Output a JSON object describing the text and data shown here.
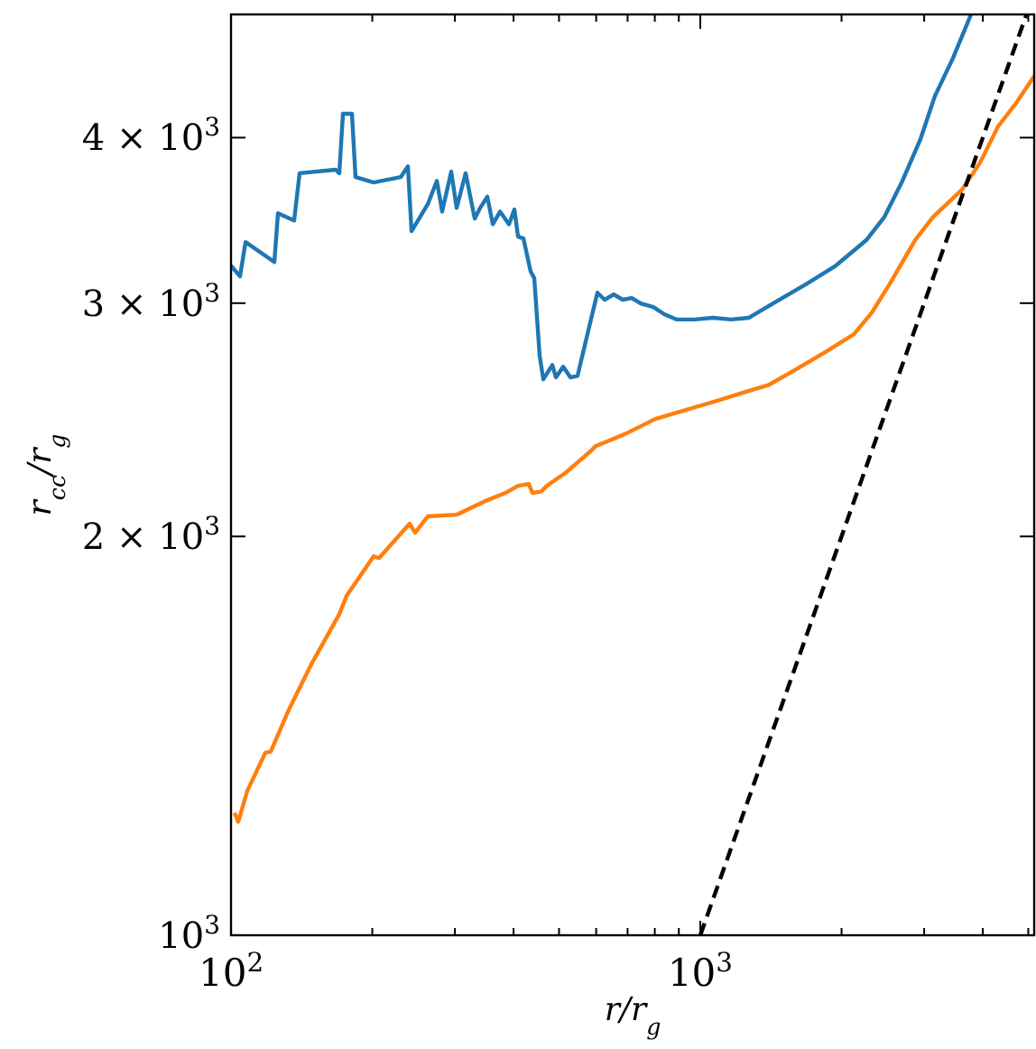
{
  "chart_data": {
    "type": "line",
    "xlabel": "r/r$_{g}$",
    "ylabel": "r$_{cc}$/r$_{g}$",
    "log": "xy",
    "grid": false,
    "xlim": [
      100,
      5147
    ],
    "ylim": [
      1000,
      4955
    ],
    "xticks": [
      {
        "value": 100,
        "label": "10$^{2}$"
      },
      {
        "value": 200,
        "label": null
      },
      {
        "value": 300,
        "label": null
      },
      {
        "value": 400,
        "label": null
      },
      {
        "value": 500,
        "label": null
      },
      {
        "value": 600,
        "label": null
      },
      {
        "value": 700,
        "label": null
      },
      {
        "value": 800,
        "label": null
      },
      {
        "value": 900,
        "label": null
      },
      {
        "value": 1000,
        "label": "10$^{3}$"
      },
      {
        "value": 2000,
        "label": null
      },
      {
        "value": 3000,
        "label": null
      },
      {
        "value": 4000,
        "label": null
      },
      {
        "value": 5000,
        "label": null
      }
    ],
    "yticks": [
      {
        "value": 1000,
        "label": "10$^{3}$"
      },
      {
        "value": 2000,
        "label": "2 × 10$^{3}$"
      },
      {
        "value": 3000,
        "label": "3 × 10$^{3}$"
      },
      {
        "value": 4000,
        "label": "4 × 10$^{3}$"
      }
    ],
    "series": [
      {
        "color": "#1f77b4",
        "line_style": "solid",
        "x": [
          100,
          104.5,
          107.4,
          123.7,
          125.9,
          136.3,
          140,
          167.1,
          170.1,
          173.2,
          181,
          184.2,
          201.3,
          229.9,
          238.2,
          242.5,
          262.6,
          274.5,
          281.8,
          294.6,
          302.6,
          316.2,
          330.6,
          339.5,
          351.7,
          361.3,
          374.3,
          391.1,
          401.7,
          408.9,
          419.9,
          435,
          442.8,
          454.7,
          462.9,
          483.8,
          492.4,
          510.3,
          528.7,
          547.6,
          577.4,
          603.6,
          625.5,
          653.8,
          683.4,
          714.3,
          746.6,
          794.3,
          837.5,
          891.3,
          973.8,
          1064,
          1163,
          1270,
          1451,
          1686,
          1944,
          2258,
          2468,
          2696,
          2946,
          3162,
          3455,
          3776
        ],
        "values": [
          3202,
          3143,
          3336,
          3222,
          3507,
          3463,
          3760,
          3783,
          3760,
          4170,
          4170,
          3735,
          3700,
          3735,
          3805,
          3400,
          3563,
          3710,
          3518,
          3770,
          3540,
          3760,
          3475,
          3540,
          3610,
          3441,
          3518,
          3441,
          3530,
          3368,
          3357,
          3170,
          3133,
          2737,
          2628,
          2694,
          2637,
          2686,
          2637,
          2644,
          2861,
          3055,
          3018,
          3046,
          3018,
          3027,
          2999,
          2980,
          2943,
          2916,
          2916,
          2925,
          2916,
          2925,
          3008,
          3103,
          3202,
          3347,
          3485,
          3710,
          3990,
          4300,
          4593,
          4955
        ]
      },
      {
        "color": "#ff7f0e",
        "line_style": "solid",
        "x": [
          101.8,
          103.6,
          108.3,
          118.3,
          121.5,
          132.8,
          148.9,
          170.1,
          176.3,
          201.3,
          206.7,
          240.3,
          246.7,
          262.6,
          302.6,
          351.7,
          384.3,
          408.9,
          431.1,
          438.8,
          458.7,
          471.1,
          514.8,
          582.7,
          598.3,
          695.6,
          801.4,
          931.6,
          1083,
          1248,
          1400,
          1585,
          1842,
          2123,
          2320,
          2534,
          2869,
          3134,
          3612,
          3947,
          4312,
          4711,
          5147
        ],
        "values": [
          1237,
          1218,
          1285,
          1373,
          1376,
          1480,
          1606,
          1747,
          1804,
          1932,
          1926,
          2045,
          2013,
          2071,
          2077,
          2130,
          2157,
          2184,
          2191,
          2157,
          2163,
          2184,
          2232,
          2318,
          2340,
          2392,
          2453,
          2492,
          2531,
          2571,
          2603,
          2669,
          2754,
          2842,
          2951,
          3103,
          3347,
          3485,
          3654,
          3830,
          4079,
          4248,
          4452
        ]
      },
      {
        "color": "#000000",
        "line_style": "dashed",
        "x": [
          1000,
          4955
        ],
        "values": [
          1000,
          4955
        ]
      }
    ]
  }
}
